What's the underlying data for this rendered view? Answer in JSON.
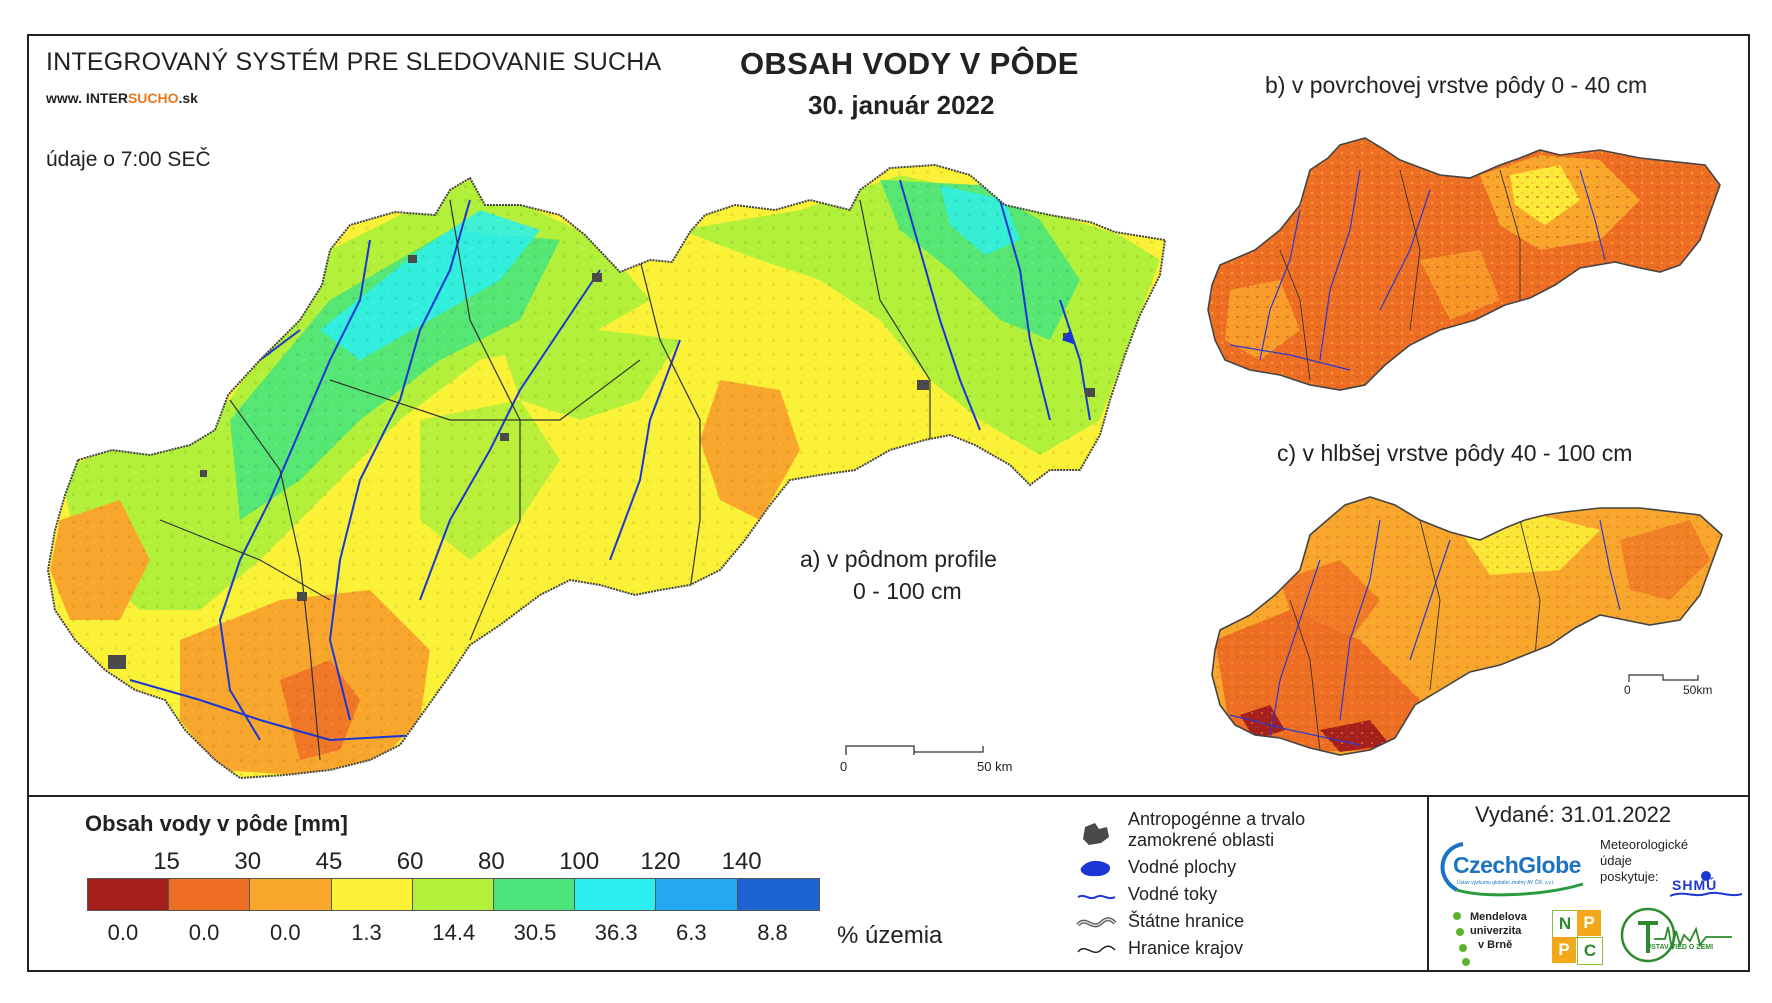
{
  "header": {
    "system_title": "INTEGROVANÝ SYSTÉM PRE SLEDOVANIE SUCHA",
    "website_prefix": "www. INTER",
    "website_highlight": "SUCHO",
    "website_suffix": ".sk",
    "time_note": "údaje o 7:00 SEČ",
    "main_title": "OBSAH VODY V PÔDE",
    "date": "30. január 2022"
  },
  "maps": {
    "a_caption_line1": "a) v pôdnom profile",
    "a_caption_line2": "0 - 100 cm",
    "b_caption": "b) v povrchovej vrstve pôdy 0 - 40 cm",
    "c_caption": "c) v hlbšej vrstve pôdy 40 - 100 cm",
    "scale_main": {
      "start": "0",
      "end": "50 km"
    },
    "scale_small": {
      "start": "0",
      "end": "50km"
    }
  },
  "legend": {
    "title": "Obsah vody v pôde  [mm]",
    "thresholds": [
      "15",
      "30",
      "45",
      "60",
      "80",
      "100",
      "120",
      "140"
    ],
    "colors": [
      "#a51f1c",
      "#ee6f24",
      "#f9a72c",
      "#fbf238",
      "#b3f03a",
      "#4ae47a",
      "#2cf0ef",
      "#24a8f2",
      "#1e63d2"
    ],
    "percentages": [
      "0.0",
      "0.0",
      "0.0",
      "1.3",
      "14.4",
      "30.5",
      "36.3",
      "6.3",
      "8.8"
    ],
    "percent_unit": "% územia"
  },
  "symbols": {
    "anthropogenic_line1": "Antropogénne a trvalo",
    "anthropogenic_line2": "zamokrené oblasti",
    "water_bodies": "Vodné plochy",
    "water_streams": "Vodné toky",
    "state_borders": "Štátne hranice",
    "region_borders": "Hranice krajov"
  },
  "footer": {
    "issued": "Vydané: 31.01.2022",
    "czechglobe_name": "CzechGlobe",
    "czechglobe_sub": "Ústav výzkumu globální změny AV ČR, v.v.i.",
    "met_line1": "Meteorologické",
    "met_line2": "údaje",
    "met_line3": "poskytuje:",
    "shmu": "SHMÚ",
    "mendel_line1": "Mendelova",
    "mendel_line2": "univerzita",
    "mendel_line3": "v Brně",
    "nppc_letters": [
      "N",
      "P",
      "P",
      "C"
    ],
    "uvz": "ÚSTAV VIED O ZEMI"
  }
}
